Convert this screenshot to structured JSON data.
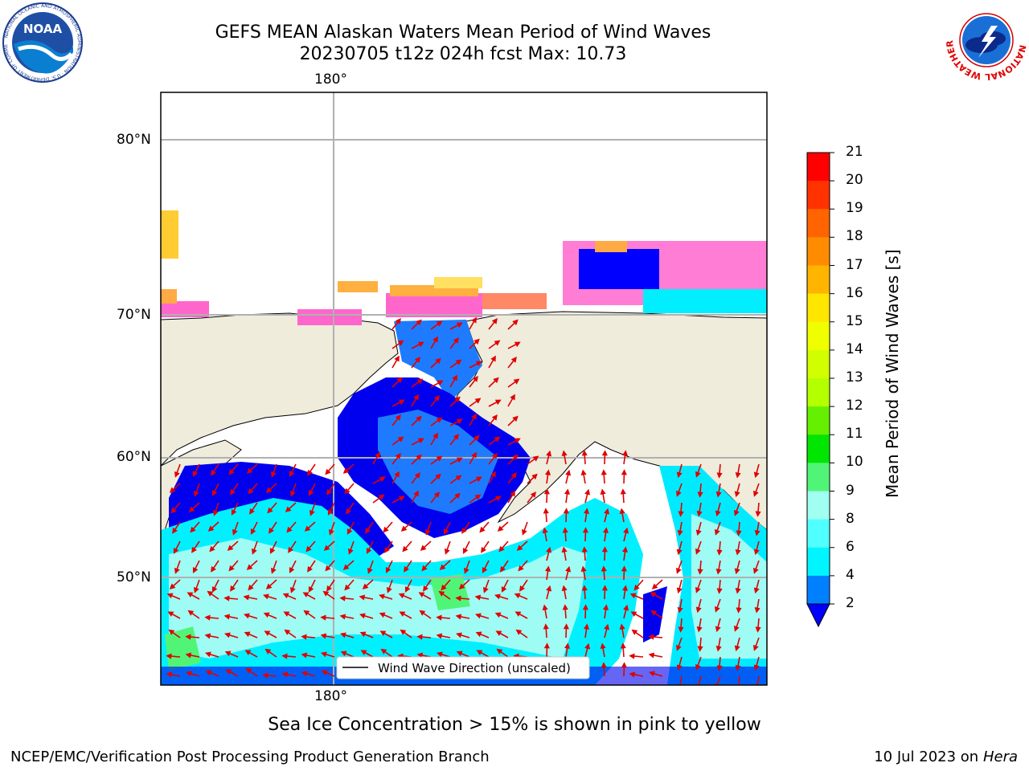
{
  "header": {
    "title_line1": "GEFS MEAN Alaskan Waters Mean Period of Wind Waves",
    "title_line2": "20230705 t12z 024h fcst   Max: 10.73"
  },
  "logos": {
    "left": "NOAA",
    "left_ring_text": "NATIONAL OCEANIC AND ATMOSPHERIC ADMINISTRATION · U.S. DEPARTMENT OF COMMERCE",
    "right_ring_text": "NATIONAL WEATHER SERVICE"
  },
  "map": {
    "lat_ticks": [
      "80°N",
      "70°N",
      "60°N",
      "50°N"
    ],
    "lon_tick_top": "180°",
    "lon_tick_bottom": "180°",
    "legend_label": "Wind Wave Direction (unscaled)",
    "colors": {
      "land": "#efecdc",
      "ocean_missing": "#ffffff",
      "arrow": "#e00000",
      "grid": "#b0b0b0"
    }
  },
  "colorbar": {
    "label": "Mean Period of Wind Waves [s]",
    "ticks": [
      "21",
      "20",
      "19",
      "18",
      "17",
      "16",
      "15",
      "14",
      "13",
      "12",
      "11",
      "10",
      "9",
      "8",
      "6",
      "4",
      "2"
    ],
    "colors": [
      "#ff0000",
      "#ff3200",
      "#ff6400",
      "#ff8c00",
      "#ffb400",
      "#ffe600",
      "#f0ff00",
      "#d2ff00",
      "#b4ff00",
      "#64f000",
      "#00e600",
      "#50f578",
      "#a0fff0",
      "#50ffff",
      "#00f5ff",
      "#0080ff"
    ],
    "under_color": "#0000ff"
  },
  "notes": {
    "sea_ice": "Sea Ice Concentration > 15% is shown in pink to yellow"
  },
  "footer": {
    "left": "NCEP/EMC/Verification Post Processing Product Generation Branch",
    "date": "10 Jul 2023 on ",
    "machine": "Hera"
  }
}
